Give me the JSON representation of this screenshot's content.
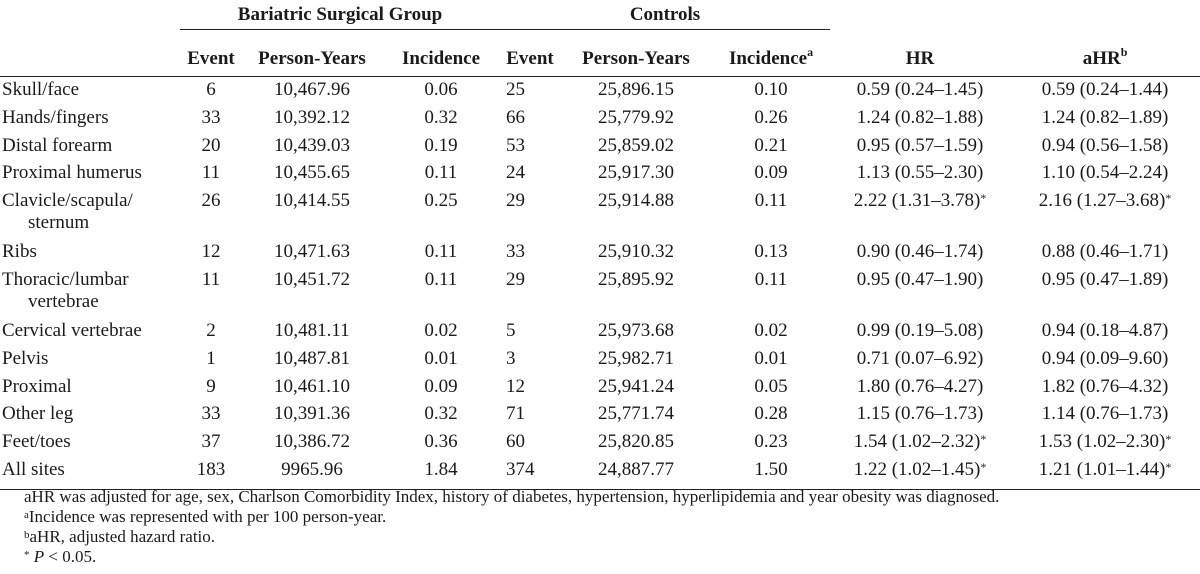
{
  "groups": {
    "bariatric": "Bariatric Surgical Group",
    "controls": "Controls"
  },
  "headers": {
    "event": "Event",
    "person_years": "Person-Years",
    "incidence": "Incidence",
    "incidence_sup": "a",
    "hr": "HR",
    "ahr": "aHR",
    "ahr_sup": "b"
  },
  "rows": [
    {
      "site": "Skull/face",
      "site2": "",
      "b_event": "6",
      "b_py": "10,467.96",
      "b_inc": "0.06",
      "c_event": "25",
      "c_py": "25,896.15",
      "c_inc": "0.10",
      "hr": "0.59 (0.24–1.45)",
      "hr_sig": "",
      "ahr": "0.59 (0.24–1.44)",
      "ahr_sig": ""
    },
    {
      "site": "Hands/fingers",
      "site2": "",
      "b_event": "33",
      "b_py": "10,392.12",
      "b_inc": "0.32",
      "c_event": "66",
      "c_py": "25,779.92",
      "c_inc": "0.26",
      "hr": "1.24 (0.82–1.88)",
      "hr_sig": "",
      "ahr": "1.24 (0.82–1.89)",
      "ahr_sig": ""
    },
    {
      "site": "Distal forearm",
      "site2": "",
      "b_event": "20",
      "b_py": "10,439.03",
      "b_inc": "0.19",
      "c_event": "53",
      "c_py": "25,859.02",
      "c_inc": "0.21",
      "hr": "0.95 (0.57–1.59)",
      "hr_sig": "",
      "ahr": "0.94 (0.56–1.58)",
      "ahr_sig": ""
    },
    {
      "site": "Proximal humerus",
      "site2": "",
      "b_event": "11",
      "b_py": "10,455.65",
      "b_inc": "0.11",
      "c_event": "24",
      "c_py": "25,917.30",
      "c_inc": "0.09",
      "hr": "1.13 (0.55–2.30)",
      "hr_sig": "",
      "ahr": "1.10 (0.54–2.24)",
      "ahr_sig": ""
    },
    {
      "site": "Clavicle/scapula/",
      "site2": "sternum",
      "b_event": "26",
      "b_py": "10,414.55",
      "b_inc": "0.25",
      "c_event": "29",
      "c_py": "25,914.88",
      "c_inc": "0.11",
      "hr": "2.22 (1.31–3.78)",
      "hr_sig": "*",
      "ahr": "2.16 (1.27–3.68)",
      "ahr_sig": "*"
    },
    {
      "site": "Ribs",
      "site2": "",
      "b_event": "12",
      "b_py": "10,471.63",
      "b_inc": "0.11",
      "c_event": "33",
      "c_py": "25,910.32",
      "c_inc": "0.13",
      "hr": "0.90 (0.46–1.74)",
      "hr_sig": "",
      "ahr": "0.88 (0.46–1.71)",
      "ahr_sig": ""
    },
    {
      "site": "Thoracic/lumbar",
      "site2": "vertebrae",
      "b_event": "11",
      "b_py": "10,451.72",
      "b_inc": "0.11",
      "c_event": "29",
      "c_py": "25,895.92",
      "c_inc": "0.11",
      "hr": "0.95 (0.47–1.90)",
      "hr_sig": "",
      "ahr": "0.95 (0.47–1.89)",
      "ahr_sig": ""
    },
    {
      "site": "Cervical vertebrae",
      "site2": "",
      "b_event": "2",
      "b_py": "10,481.11",
      "b_inc": "0.02",
      "c_event": "5",
      "c_py": "25,973.68",
      "c_inc": "0.02",
      "hr": "0.99 (0.19–5.08)",
      "hr_sig": "",
      "ahr": "0.94 (0.18–4.87)",
      "ahr_sig": ""
    },
    {
      "site": "Pelvis",
      "site2": "",
      "b_event": "1",
      "b_py": "10,487.81",
      "b_inc": "0.01",
      "c_event": "3",
      "c_py": "25,982.71",
      "c_inc": "0.01",
      "hr": "0.71 (0.07–6.92)",
      "hr_sig": "",
      "ahr": "0.94 (0.09–9.60)",
      "ahr_sig": ""
    },
    {
      "site": "Proximal",
      "site2": "",
      "b_event": "9",
      "b_py": "10,461.10",
      "b_inc": "0.09",
      "c_event": "12",
      "c_py": "25,941.24",
      "c_inc": "0.05",
      "hr": "1.80 (0.76–4.27)",
      "hr_sig": "",
      "ahr": "1.82 (0.76–4.32)",
      "ahr_sig": ""
    },
    {
      "site": "Other leg",
      "site2": "",
      "b_event": "33",
      "b_py": "10,391.36",
      "b_inc": "0.32",
      "c_event": "71",
      "c_py": "25,771.74",
      "c_inc": "0.28",
      "hr": "1.15 (0.76–1.73)",
      "hr_sig": "",
      "ahr": "1.14 (0.76–1.73)",
      "ahr_sig": ""
    },
    {
      "site": "Feet/toes",
      "site2": "",
      "b_event": "37",
      "b_py": "10,386.72",
      "b_inc": "0.36",
      "c_event": "60",
      "c_py": "25,820.85",
      "c_inc": "0.23",
      "hr": "1.54 (1.02–2.32)",
      "hr_sig": "*",
      "ahr": "1.53 (1.02–2.30)",
      "ahr_sig": "*"
    },
    {
      "site": "All sites",
      "site2": "",
      "b_event": "183",
      "b_py": "9965.96",
      "b_inc": "1.84",
      "c_event": "374",
      "c_py": "24,887.77",
      "c_inc": "1.50",
      "hr": "1.22 (1.02–1.45)",
      "hr_sig": "*",
      "ahr": "1.21 (1.01–1.44)",
      "ahr_sig": "*"
    }
  ],
  "notes": {
    "adjust": "aHR was adjusted for age, sex, Charlson Comorbidity Index, history of diabetes, hypertension, hyperlipidemia and year obesity was diagnosed.",
    "a_mark": "a",
    "a_text": "Incidence was represented with per 100 person-year.",
    "b_mark": "b",
    "b_text": "aHR, adjusted hazard ratio.",
    "star_mark": "*",
    "p_label": "P",
    "p_text": " < 0.05."
  }
}
